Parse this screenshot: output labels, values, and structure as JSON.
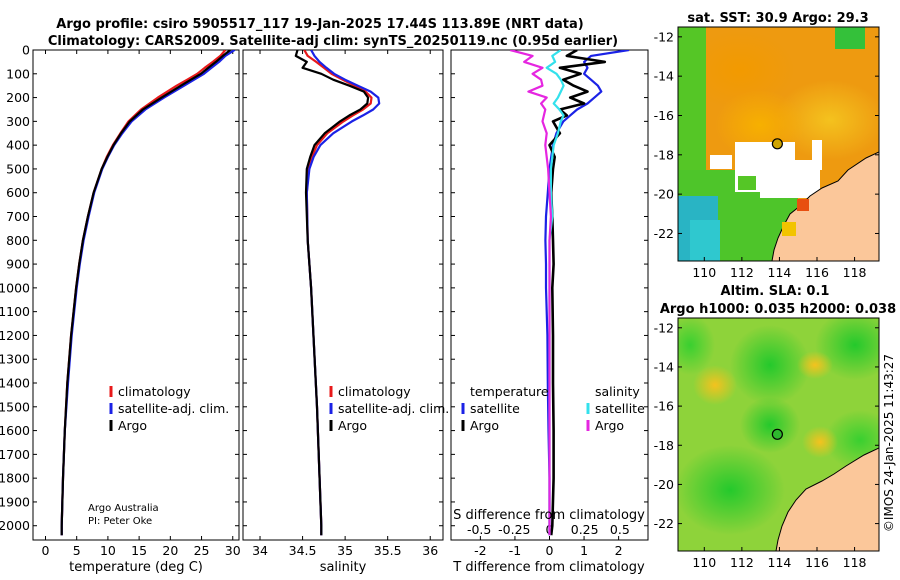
{
  "figure": {
    "title_line1": "Argo profile: csiro 5905517_117 19-Jan-2025 17.44S 113.89E (NRT data)",
    "title_line2": "Climatology: CARS2009. Satellite-adj clim: synTS_20250119.nc (0.95d earlier)",
    "credit": "Argo Australia",
    "pi": "PI: Peter Oke",
    "timestamp": "©IMOS 24-Jan-2025 11:43:27"
  },
  "colors": {
    "climatology": "#e8191a",
    "satellite_adj": "#1b22e6",
    "argo": "#000000",
    "sal_satellite": "#33e1ec",
    "sal_argo": "#e526e0",
    "land": "#fbc79a"
  },
  "chart_data": [
    {
      "id": "temperature",
      "type": "line",
      "xlabel": "temperature (deg C)",
      "ylabel": "",
      "xlim": [
        -2,
        31
      ],
      "ylim": [
        2060,
        0
      ],
      "xticks": [
        0,
        5,
        10,
        15,
        20,
        25,
        30
      ],
      "yticks": [
        0,
        100,
        200,
        300,
        400,
        500,
        600,
        700,
        800,
        900,
        1000,
        1100,
        1200,
        1300,
        1400,
        1500,
        1600,
        1700,
        1800,
        1900,
        2000
      ],
      "legend": [
        "climatology",
        "satellite-adj. clim.",
        "Argo"
      ],
      "legend_position": "lower-right",
      "depth": [
        0,
        25,
        50,
        75,
        100,
        125,
        150,
        200,
        250,
        300,
        350,
        400,
        450,
        500,
        600,
        700,
        800,
        900,
        1000,
        1200,
        1400,
        1600,
        1800,
        2000,
        2040
      ],
      "series": [
        {
          "name": "climatology",
          "values": [
            28.8,
            28.0,
            26.8,
            25.5,
            24.3,
            22.7,
            21.0,
            18.0,
            15.3,
            13.3,
            12.0,
            10.8,
            9.8,
            9.0,
            7.7,
            6.8,
            6.0,
            5.4,
            4.9,
            4.1,
            3.5,
            3.1,
            2.8,
            2.6,
            2.6
          ]
        },
        {
          "name": "satellite-adj. clim.",
          "values": [
            30.3,
            28.8,
            27.8,
            26.6,
            25.4,
            23.8,
            22.2,
            19.0,
            16.0,
            13.8,
            12.3,
            11.0,
            10.0,
            9.1,
            7.8,
            6.9,
            6.1,
            5.5,
            5.0,
            4.2,
            3.6,
            3.1,
            2.8,
            2.6,
            2.6
          ]
        },
        {
          "name": "Argo",
          "values": [
            29.6,
            28.4,
            27.3,
            26.1,
            24.9,
            23.3,
            21.7,
            18.6,
            15.6,
            13.5,
            12.1,
            10.9,
            9.9,
            9.0,
            7.7,
            6.8,
            6.0,
            5.4,
            4.9,
            4.1,
            3.5,
            3.1,
            2.8,
            2.6,
            2.6
          ]
        }
      ]
    },
    {
      "id": "salinity",
      "type": "line",
      "xlabel": "salinity",
      "xlim": [
        33.8,
        36.15
      ],
      "ylim": [
        2060,
        0
      ],
      "xticks": [
        34,
        34.5,
        35,
        35.5,
        36
      ],
      "legend": [
        "climatology",
        "satellite-adj. clim.",
        "Argo"
      ],
      "legend_position": "lower-right",
      "depth": [
        0,
        25,
        50,
        75,
        100,
        125,
        150,
        175,
        200,
        225,
        250,
        275,
        300,
        350,
        400,
        450,
        500,
        600,
        800,
        1000,
        1500,
        2000,
        2040
      ],
      "series": [
        {
          "name": "climatology",
          "values": [
            34.52,
            34.56,
            34.66,
            34.75,
            34.84,
            34.97,
            35.11,
            35.24,
            35.31,
            35.3,
            35.21,
            35.09,
            34.98,
            34.79,
            34.67,
            34.61,
            34.57,
            34.55,
            34.56,
            34.6,
            34.67,
            34.72,
            34.72
          ]
        },
        {
          "name": "satellite-adj. clim.",
          "values": [
            34.6,
            34.64,
            34.7,
            34.78,
            34.87,
            35.0,
            35.15,
            35.3,
            35.39,
            35.4,
            35.33,
            35.21,
            35.08,
            34.86,
            34.71,
            34.63,
            34.58,
            34.55,
            34.56,
            34.6,
            34.67,
            34.72,
            34.72
          ]
        },
        {
          "name": "Argo",
          "values": [
            34.44,
            34.42,
            34.55,
            34.5,
            34.72,
            34.86,
            35.05,
            35.22,
            35.27,
            35.26,
            35.18,
            35.05,
            34.94,
            34.76,
            34.64,
            34.59,
            34.55,
            34.54,
            34.56,
            34.6,
            34.67,
            34.72,
            34.72
          ]
        }
      ]
    },
    {
      "id": "differences",
      "type": "line",
      "xlabel": "T difference from climatology",
      "top_label": "S difference from climatology",
      "xlim": [
        -2.85,
        2.85
      ],
      "ylim": [
        2060,
        0
      ],
      "xticks": [
        -2,
        -1,
        0,
        1,
        2
      ],
      "sticks": [
        -0.5,
        -0.25,
        0,
        0.25,
        0.5
      ],
      "stick_labels": [
        "-0.5",
        "-0.25",
        "0",
        "0.25",
        "0.5"
      ],
      "legend_temperature_title": "temperature",
      "legend_salinity_title": "salinity",
      "legend_items": [
        "satellite",
        "Argo",
        "satellite",
        "Argo"
      ],
      "depth": [
        0,
        25,
        50,
        75,
        100,
        125,
        150,
        175,
        200,
        225,
        250,
        275,
        300,
        350,
        400,
        450,
        500,
        600,
        700,
        800,
        900,
        1000,
        1200,
        1400,
        1600,
        1800,
        2000,
        2040
      ],
      "series": [
        {
          "name": "temperature satellite",
          "values": [
            2.3,
            1.2,
            1.0,
            1.1,
            1.0,
            1.2,
            1.4,
            1.5,
            1.3,
            1.1,
            0.8,
            0.6,
            0.4,
            0.2,
            0.1,
            0.05,
            0.0,
            -0.05,
            -0.1,
            -0.12,
            -0.1,
            -0.1,
            -0.06,
            -0.05,
            -0.03,
            0.0,
            0.0,
            0.0
          ]
        },
        {
          "name": "temperature Argo",
          "values": [
            0.8,
            0.5,
            1.6,
            0.3,
            0.9,
            0.4,
            0.7,
            1.1,
            0.6,
            1.0,
            0.3,
            0.5,
            0.1,
            0.3,
            0.0,
            0.15,
            0.1,
            0.05,
            0.08,
            0.1,
            0.12,
            0.08,
            0.1,
            0.1,
            0.12,
            0.12,
            0.08,
            0.05
          ]
        },
        {
          "name": "salinity satellite",
          "values": [
            0.08,
            0.02,
            0.04,
            -0.02,
            0.05,
            0.08,
            0.1,
            0.08,
            0.06,
            0.03,
            0.07,
            0.1,
            0.08,
            0.06,
            0.03,
            0.02,
            0.01,
            0.01,
            0.02,
            0.0,
            0.0,
            0.0,
            0.0,
            0.0,
            0.0,
            0.0,
            0.0,
            0.0
          ]
        },
        {
          "name": "salinity Argo",
          "values": [
            -0.28,
            -0.12,
            -0.18,
            -0.05,
            -0.12,
            -0.06,
            -0.05,
            -0.15,
            -0.02,
            -0.06,
            -0.03,
            -0.04,
            -0.05,
            -0.02,
            -0.03,
            -0.02,
            -0.01,
            0.0,
            0.01,
            0.0,
            0.0,
            0.0,
            0.0,
            0.0,
            0.0,
            0.0,
            0.0,
            0.0
          ]
        }
      ]
    },
    {
      "id": "sst_map",
      "type": "heatmap",
      "title": "sat. SST: 30.9 Argo: 29.3",
      "xlim": [
        108.6,
        119.3
      ],
      "ylim": [
        -23.4,
        -11.5
      ],
      "xticks": [
        110,
        112,
        114,
        116,
        118
      ],
      "yticks": [
        -12,
        -14,
        -16,
        -18,
        -20,
        -22
      ],
      "float_position": [
        113.89,
        -17.44
      ]
    },
    {
      "id": "sla_map",
      "type": "heatmap",
      "title_line1": "Altim. SLA: 0.1",
      "title_line2": "Argo h1000: 0.035 h2000: 0.038",
      "xlim": [
        108.6,
        119.3
      ],
      "ylim": [
        -23.4,
        -11.5
      ],
      "xticks": [
        110,
        112,
        114,
        116,
        118
      ],
      "yticks": [
        -12,
        -14,
        -16,
        -18,
        -20,
        -22
      ],
      "float_position": [
        113.89,
        -17.44
      ]
    }
  ]
}
